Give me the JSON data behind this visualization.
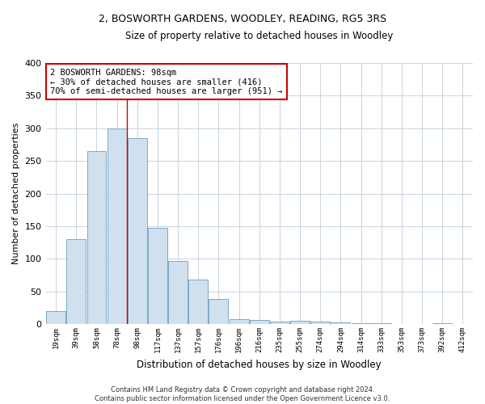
{
  "title": "2, BOSWORTH GARDENS, WOODLEY, READING, RG5 3RS",
  "subtitle": "Size of property relative to detached houses in Woodley",
  "xlabel": "Distribution of detached houses by size in Woodley",
  "ylabel": "Number of detached properties",
  "categories": [
    "19sqm",
    "39sqm",
    "58sqm",
    "78sqm",
    "98sqm",
    "117sqm",
    "137sqm",
    "157sqm",
    "176sqm",
    "196sqm",
    "216sqm",
    "235sqm",
    "255sqm",
    "274sqm",
    "294sqm",
    "314sqm",
    "333sqm",
    "353sqm",
    "373sqm",
    "392sqm",
    "412sqm"
  ],
  "values": [
    20,
    130,
    265,
    300,
    285,
    147,
    97,
    68,
    38,
    8,
    6,
    4,
    5,
    4,
    3,
    2,
    1,
    0,
    0,
    1,
    0
  ],
  "bar_color": "#d0e0ef",
  "bar_edge_color": "#7aaac8",
  "vline_color": "#cc0000",
  "vline_x": 3.5,
  "annotation_text": "2 BOSWORTH GARDENS: 98sqm\n← 30% of detached houses are smaller (416)\n70% of semi-detached houses are larger (951) →",
  "annotation_box_color": "white",
  "annotation_box_edge": "#cc0000",
  "footer": "Contains HM Land Registry data © Crown copyright and database right 2024.\nContains public sector information licensed under the Open Government Licence v3.0.",
  "ylim": [
    0,
    400
  ],
  "yticks": [
    0,
    50,
    100,
    150,
    200,
    250,
    300,
    350,
    400
  ],
  "background_color": "#ffffff",
  "grid_color": "#c8d4e0",
  "title_fontsize": 9,
  "subtitle_fontsize": 8.5
}
